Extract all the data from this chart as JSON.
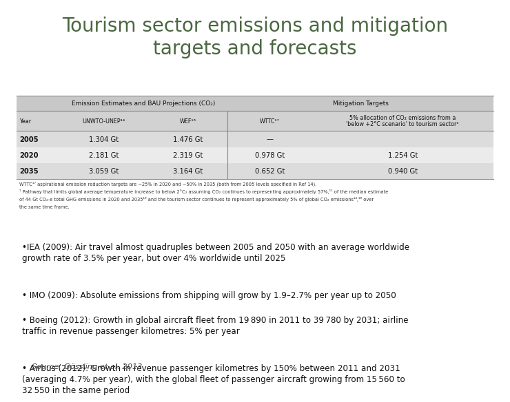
{
  "title_line1": "Tourism sector emissions and mitigation",
  "title_line2": "targets and forecasts",
  "title_color": "#4a6741",
  "title_fontsize": 20,
  "background_color": "#ffffff",
  "table_section1_header": "Emission Estimates and BAU Projections (CO₂)",
  "table_section2_header": "Mitigation Targets",
  "table_col1_header": "Year",
  "table_col2_header": "UNWTO-UNEP¹⁴",
  "table_col3_header": "WEF¹⁶",
  "table_col4_header": "WTTC¹⁷",
  "table_col5_header": "5% allocation of CO₂ emissions from a\n'below +2°C scenario' to tourism sector¹",
  "rows": [
    [
      "2005",
      "1.304 Gt",
      "1.476 Gt",
      "—",
      ""
    ],
    [
      "2020",
      "2.181 Gt",
      "2.319 Gt",
      "0.978 Gt",
      "1.254 Gt"
    ],
    [
      "2035",
      "3.059 Gt",
      "3.164 Gt",
      "0.652 Gt",
      "0.940 Gt"
    ]
  ],
  "footnote1": "WTTC¹⁷ aspirational emission reduction targets are −25% in 2020 and −50% in 2035 (both from 2005 levels specified in Ref 14).",
  "footnote2": "¹ Pathway that limits global average temperature increase to below 2°C₂ assuming CO₂ continues to representing approximately 57%,¹¹ of the median estimate",
  "footnote3": "of 44 Gt CO₂-e total GHG emissions in 2020 and 2035¹⁹ and the tourism sector continues to represent approximately 5% of global CO₂ emissions¹⁴,¹⁶ over",
  "footnote4": "the same time frame.",
  "bullets": [
    "•IEA (2009): Air travel almost quadruples between 2005 and 2050 with an average worldwide\ngrowth rate of 3.5% per year, but over 4% worldwide until 2025",
    "• IMO (2009): Absolute emissions from shipping will grow by 1.9–2.7% per year up to 2050",
    "• Boeing (2012): Growth in global aircraft fleet from 19 890 in 2011 to 39 780 by 2031; airline\ntraffic in revenue passenger kilometres: 5% per year",
    "• Airbus (2012): Growth in revenue passenger kilometres by 150% between 2011 and 2031\n(averaging 4.7% per year), with the global fleet of passenger aircraft growing from 15 560 to\n32 550 in the same period"
  ],
  "source": "Source: Gössling et al. 2013",
  "bullet_fontsize": 8.6,
  "source_fontsize": 8.2
}
